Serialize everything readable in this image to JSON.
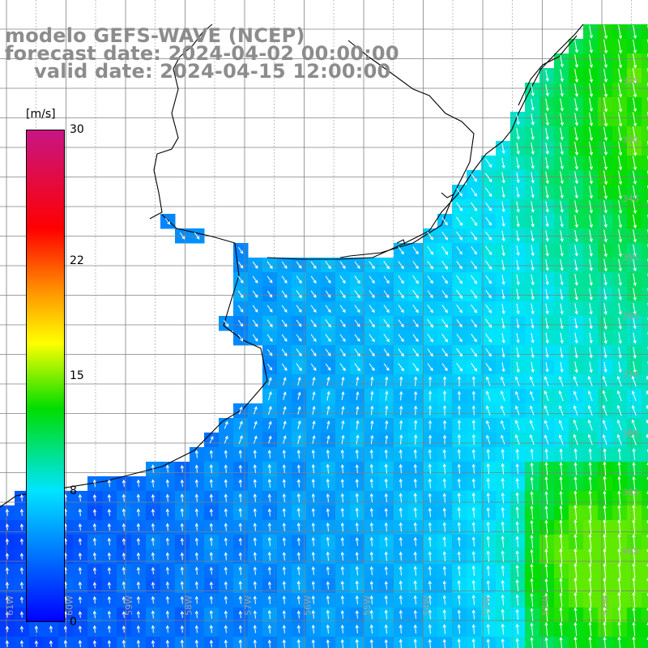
{
  "header": {
    "title_line1": "modelo GEFS-WAVE (NCEP)",
    "title_line2": "forecast date: 2024-04-02 00:00:00",
    "title_line3": "valid date: 2024-04-15 12:00:00"
  },
  "colorbar": {
    "unit": "[m/s]",
    "min": 0,
    "max": 30,
    "ticks": [
      {
        "value": 30,
        "label": "30"
      },
      {
        "value": 22,
        "label": "22"
      },
      {
        "value": 15,
        "label": "15"
      },
      {
        "value": 8,
        "label": "8"
      },
      {
        "value": 0,
        "label": "0"
      }
    ],
    "stops": [
      {
        "value": 0,
        "color": "#0000ff"
      },
      {
        "value": 8,
        "color": "#00e5ff"
      },
      {
        "value": 13,
        "color": "#00dd00"
      },
      {
        "value": 17,
        "color": "#ffff00"
      },
      {
        "value": 20,
        "color": "#ff9900"
      },
      {
        "value": 24,
        "color": "#ff0000"
      },
      {
        "value": 30,
        "color": "#c71585"
      }
    ]
  },
  "map": {
    "lon_labels": [
      "61W",
      "60W",
      "59W",
      "58W",
      "57W",
      "56W",
      "55W",
      "54W",
      "53W",
      "52W",
      "51W"
    ],
    "lat_labels": [
      "32S",
      "33S",
      "34S",
      "35S",
      "36S",
      "37S",
      "38S",
      "39S",
      "40S"
    ],
    "grid_color": "#808080",
    "coast_color": "#000000"
  }
}
